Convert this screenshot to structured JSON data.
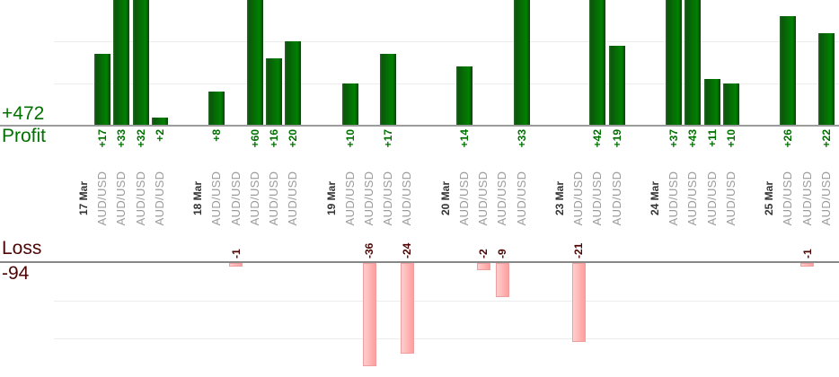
{
  "summary": {
    "profit_total": "+472",
    "profit_label": "Profit",
    "loss_label": "Loss",
    "loss_total": "-94"
  },
  "chart_data": {
    "type": "bar",
    "description": "Per-trade profit (green, above axis) and loss (pink, below axis) grouped by day",
    "groups": [
      {
        "date": "17 Mar",
        "trades": [
          {
            "instrument": "AUD/USD",
            "value": 17
          },
          {
            "instrument": "AUD/USD",
            "value": 33
          },
          {
            "instrument": "AUD/USD",
            "value": 32
          },
          {
            "instrument": "AUD/USD",
            "value": 2
          }
        ]
      },
      {
        "date": "18 Mar",
        "trades": [
          {
            "instrument": "AUD/USD",
            "value": 8
          },
          {
            "instrument": "AUD/USD",
            "value": -1
          },
          {
            "instrument": "AUD/USD",
            "value": 60
          },
          {
            "instrument": "AUD/USD",
            "value": 16
          },
          {
            "instrument": "AUD/USD",
            "value": 20
          }
        ]
      },
      {
        "date": "19 Mar",
        "trades": [
          {
            "instrument": "AUD/USD",
            "value": 10
          },
          {
            "instrument": "AUD/USD",
            "value": -36
          },
          {
            "instrument": "AUD/USD",
            "value": 17
          },
          {
            "instrument": "AUD/USD",
            "value": -24
          }
        ]
      },
      {
        "date": "20 Mar",
        "trades": [
          {
            "instrument": "AUD/USD",
            "value": 14
          },
          {
            "instrument": "AUD/USD",
            "value": -2
          },
          {
            "instrument": "AUD/USD",
            "value": -9
          },
          {
            "instrument": "AUD/USD",
            "value": 33
          }
        ]
      },
      {
        "date": "23 Mar",
        "trades": [
          {
            "instrument": "AUD/USD",
            "value": -21
          },
          {
            "instrument": "AUD/USD",
            "value": 42
          },
          {
            "instrument": "AUD/USD",
            "value": 19
          }
        ]
      },
      {
        "date": "24 Mar",
        "trades": [
          {
            "instrument": "AUD/USD",
            "value": 37
          },
          {
            "instrument": "AUD/USD",
            "value": 43
          },
          {
            "instrument": "AUD/USD",
            "value": 11
          },
          {
            "instrument": "AUD/USD",
            "value": 10
          }
        ]
      },
      {
        "date": "25 Mar",
        "trades": [
          {
            "instrument": "AUD/USD",
            "value": 26
          },
          {
            "instrument": "AUD/USD",
            "value": -1
          },
          {
            "instrument": "AUD/USD",
            "value": 22
          }
        ]
      }
    ],
    "totals": {
      "profit": 472,
      "loss": -94
    },
    "value_label_format": "signed",
    "profit_axis": {
      "gridline_step": 10,
      "visible_max": 30,
      "bars_clipped_at_top": true
    },
    "loss_axis": {
      "gridline_step": 10,
      "visible_min": -27,
      "bars_clipped_at_bottom": true
    },
    "legend_position": "none",
    "grid": true
  },
  "colors": {
    "profit_text": "#007000",
    "loss_text": "#4e0505",
    "date_label": "#333333",
    "instrument_label": "#9b9b9b",
    "profit_bar_highlight": "#2f6b2f",
    "profit_bar_dark": "#0b560b",
    "profit_bar_light": "#008200",
    "profit_bar_edge": "#0d3f0d",
    "loss_bar_light": "#ffcfcf",
    "loss_bar_dark": "#ff9d9d",
    "loss_bar_border": "#ee9f9f",
    "profit_axis_line": "#9c9c9c",
    "loss_axis_line": "#878787",
    "gridline": "#ededed"
  }
}
